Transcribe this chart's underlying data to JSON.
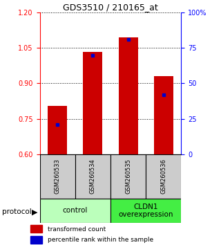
{
  "title": "GDS3510 / 210165_at",
  "samples": [
    "GSM260533",
    "GSM260534",
    "GSM260535",
    "GSM260536"
  ],
  "red_values": [
    0.805,
    1.032,
    1.095,
    0.93
  ],
  "blue_values": [
    0.726,
    1.018,
    1.085,
    0.852
  ],
  "ymin": 0.6,
  "ymax": 1.2,
  "yticks_left": [
    0.6,
    0.75,
    0.9,
    1.05,
    1.2
  ],
  "yticks_right_vals": [
    0,
    25,
    50,
    75,
    100
  ],
  "yticks_right_labels": [
    "0",
    "25",
    "50",
    "75",
    "100%"
  ],
  "groups": [
    {
      "label": "control",
      "color": "#bbffbb"
    },
    {
      "label": "CLDN1\noverexpression",
      "color": "#44ee44"
    }
  ],
  "bar_color": "#cc0000",
  "marker_color": "#0000cc",
  "bg_color": "#cccccc",
  "bar_width": 0.55,
  "legend_red": "transformed count",
  "legend_blue": "percentile rank within the sample",
  "title_fontsize": 9,
  "tick_fontsize": 7,
  "label_fontsize": 6,
  "proto_fontsize": 7.5
}
